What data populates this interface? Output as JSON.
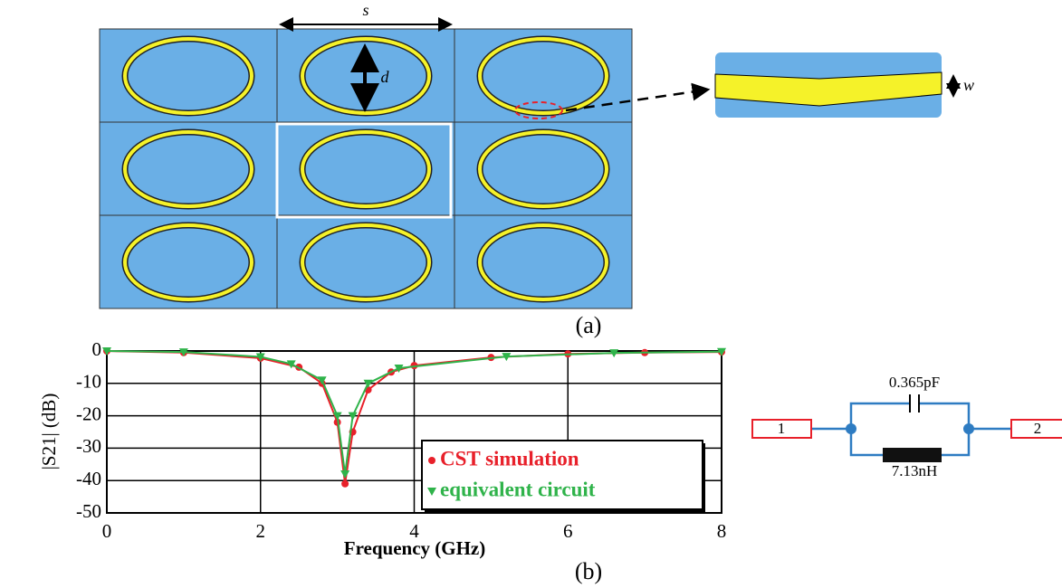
{
  "figure_a": {
    "s_label": "s",
    "d_label": "d",
    "w_label": "w",
    "caption": "(a)"
  },
  "chart_data": {
    "type": "line",
    "x_label": "Frequency (GHz)",
    "y_label": "|S21| (dB)",
    "caption": "(b)",
    "xlim": [
      0,
      8
    ],
    "xticks": [
      0,
      2,
      4,
      6,
      8
    ],
    "ylim": [
      -50,
      0
    ],
    "yticks": [
      0,
      -10,
      -20,
      -30,
      -40,
      -50
    ],
    "grid": true,
    "legend": "lower right",
    "series": [
      {
        "name": "CST simulation",
        "color": "#e8202a",
        "marker": "circle",
        "x": [
          0,
          1,
          2,
          2.5,
          2.8,
          3.0,
          3.1,
          3.2,
          3.4,
          3.7,
          4,
          5,
          6,
          7,
          8
        ],
        "values": [
          0,
          -0.5,
          -2.2,
          -5,
          -10,
          -22,
          -41,
          -25,
          -12,
          -6.5,
          -4.5,
          -2,
          -0.9,
          -0.5,
          -0.3
        ]
      },
      {
        "name": "equivalent circuit",
        "color": "#2fb34a",
        "marker": "triangle",
        "x": [
          0,
          1,
          2,
          2.4,
          2.8,
          3.0,
          3.1,
          3.2,
          3.4,
          3.8,
          5.2,
          6.6,
          8
        ],
        "values": [
          0,
          -0.3,
          -1.8,
          -4,
          -9,
          -20,
          -38,
          -20,
          -10,
          -5.3,
          -1.7,
          -0.6,
          -0.2
        ]
      }
    ]
  },
  "circuit": {
    "port1": "1",
    "port2": "2",
    "capacitor": "0.365pF",
    "inductor": "7.13nH"
  }
}
